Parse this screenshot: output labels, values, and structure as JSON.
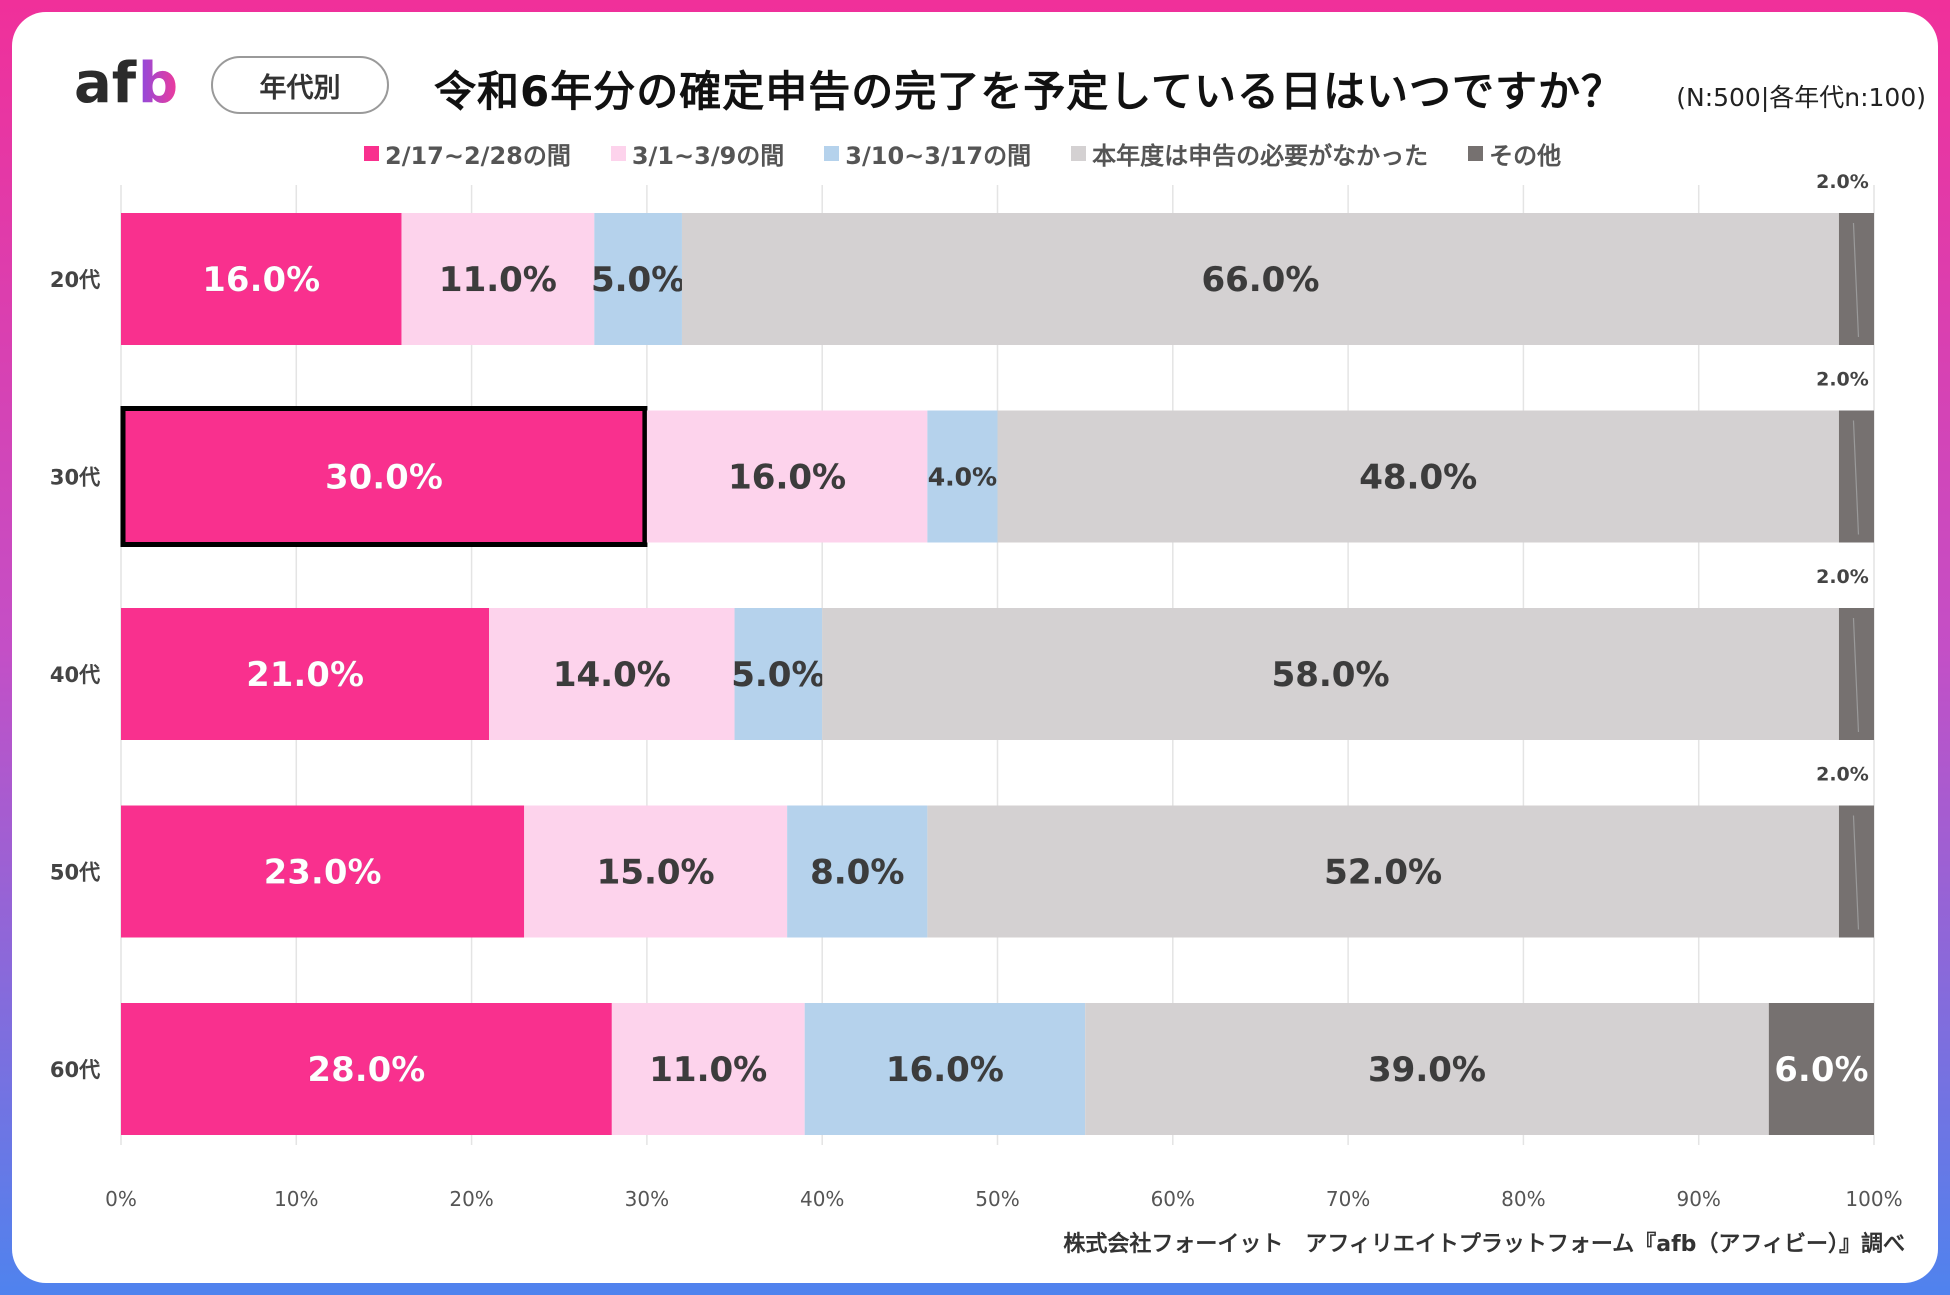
{
  "header": {
    "logo_text": "afb",
    "tag": "年代別",
    "title": "令和6年分の確定申告の完了を予定している日はいつですか？",
    "sample_note": "(N:500|各年代n:100)"
  },
  "footer": {
    "source": "株式会社フォーイット　アフィリエイトプラットフォーム『afb（アフィビー）』調べ"
  },
  "chart_data": {
    "type": "bar",
    "orientation": "horizontal",
    "stacked": true,
    "categories": [
      "20代",
      "30代",
      "40代",
      "50代",
      "60代"
    ],
    "series": [
      {
        "name": "2/17~2/28の間",
        "color": "#f9308e",
        "values": [
          16.0,
          30.0,
          21.0,
          23.0,
          28.0
        ]
      },
      {
        "name": "3/1~3/9の間",
        "color": "#fdd3ec",
        "values": [
          11.0,
          16.0,
          14.0,
          15.0,
          11.0
        ]
      },
      {
        "name": "3/10~3/17の間",
        "color": "#b5d2ec",
        "values": [
          5.0,
          4.0,
          5.0,
          8.0,
          16.0
        ]
      },
      {
        "name": "本年度は申告の必要がなかった",
        "color": "#d4d1d2",
        "values": [
          66.0,
          48.0,
          58.0,
          52.0,
          39.0
        ]
      },
      {
        "name": "その他",
        "color": "#767170",
        "values": [
          2.0,
          2.0,
          2.0,
          2.0,
          6.0
        ]
      }
    ],
    "xlim": [
      0,
      100
    ],
    "xticks": [
      "0%",
      "10%",
      "20%",
      "30%",
      "40%",
      "50%",
      "60%",
      "70%",
      "80%",
      "90%",
      "100%"
    ],
    "grid": true,
    "legend": "top",
    "highlight": {
      "category": "30代",
      "series": "2/17~2/28の間"
    },
    "label_colors": {
      "light": "#ffffff",
      "dark": "#3c3c3c"
    }
  }
}
